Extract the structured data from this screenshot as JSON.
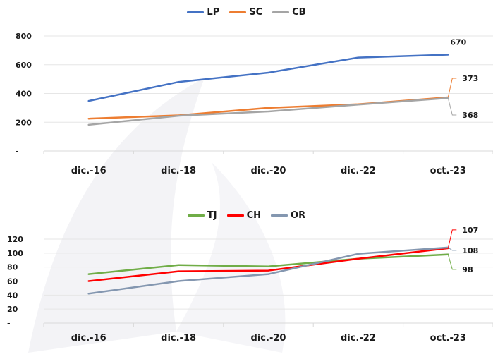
{
  "chart_data": [
    {
      "type": "line",
      "categories": [
        "dic.-16",
        "dic.-18",
        "dic.-20",
        "dic.-22",
        "oct.-23"
      ],
      "ylim": [
        0,
        800
      ],
      "yticks": [
        "-",
        "200",
        "400",
        "600",
        "800"
      ],
      "legend_position": "top",
      "grid": true,
      "series": [
        {
          "name": "LP",
          "color": "#4472C4",
          "values": [
            348,
            480,
            545,
            650,
            670
          ]
        },
        {
          "name": "SC",
          "color": "#ED7D31",
          "values": [
            225,
            248,
            300,
            325,
            373
          ]
        },
        {
          "name": "CB",
          "color": "#A5A5A5",
          "values": [
            182,
            245,
            275,
            323,
            368
          ]
        }
      ],
      "data_labels": [
        {
          "series": "LP",
          "text": "670"
        },
        {
          "series": "SC",
          "text": "373"
        },
        {
          "series": "CB",
          "text": "368"
        }
      ]
    },
    {
      "type": "line",
      "categories": [
        "dic.-16",
        "dic.-18",
        "dic.-20",
        "dic.-22",
        "oct.-23"
      ],
      "ylim": [
        0,
        120
      ],
      "yticks": [
        "-",
        "20",
        "40",
        "60",
        "80",
        "100",
        "120"
      ],
      "legend_position": "top",
      "grid": true,
      "series": [
        {
          "name": "TJ",
          "color": "#70AD47",
          "values": [
            70,
            83,
            81,
            92,
            98
          ]
        },
        {
          "name": "CH",
          "color": "#FF0000",
          "values": [
            60,
            74,
            75,
            92,
            107
          ]
        },
        {
          "name": "OR",
          "color": "#8497B0",
          "values": [
            42,
            60,
            70,
            99,
            108
          ]
        }
      ],
      "data_labels": [
        {
          "series": "CH",
          "text": "107"
        },
        {
          "series": "OR",
          "text": "108"
        },
        {
          "series": "TJ",
          "text": "98"
        }
      ]
    }
  ]
}
